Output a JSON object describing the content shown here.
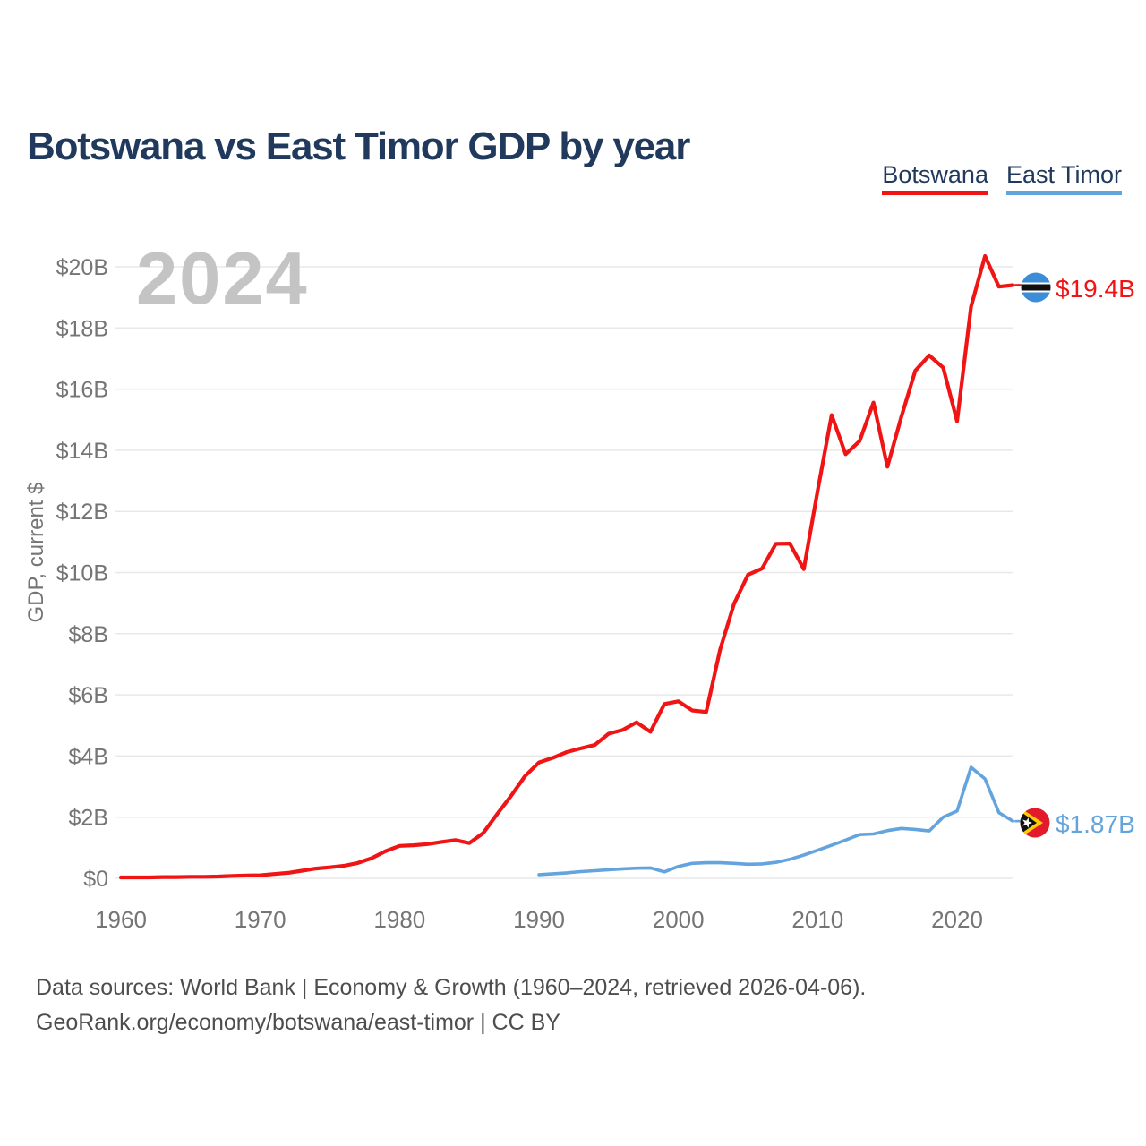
{
  "title": "Botswana vs East Timor GDP by year",
  "watermark": "2024",
  "colors": {
    "heading": "#20395c",
    "axis_text": "#757575",
    "grid": "#e8e8e8",
    "watermark": "#c4c4c4",
    "footer_text": "#4d4d4d",
    "botswana_red": "#f01414",
    "east_timor_blue": "#64a4de"
  },
  "legend": {
    "items": [
      {
        "label": "Botswana",
        "color": "#f01414"
      },
      {
        "label": "East Timor",
        "color": "#64a4de"
      }
    ]
  },
  "end_labels": [
    {
      "series": "Botswana",
      "value": "$19.4B",
      "icon": "botswana-flag-icon"
    },
    {
      "series": "East Timor",
      "value": "$1.87B",
      "icon": "east-timor-flag-icon"
    }
  ],
  "footer": {
    "line1": "Data sources: World Bank | Economy & Growth (1960–2024, retrieved 2026-04-06).",
    "line2": "GeoRank.org/economy/botswana/east-timor | CC BY"
  },
  "chart_data": {
    "type": "line",
    "title": "Botswana vs East Timor GDP by year",
    "xlabel": "",
    "ylabel": "GDP, current $",
    "y_unit": "USD billions",
    "xlim": [
      1960,
      2024
    ],
    "ylim": [
      0,
      20
    ],
    "grid": "horizontal",
    "legend_position": "top-right",
    "x_ticks": [
      {
        "v": 1960,
        "label": "1960"
      },
      {
        "v": 1970,
        "label": "1970"
      },
      {
        "v": 1980,
        "label": "1980"
      },
      {
        "v": 1990,
        "label": "1990"
      },
      {
        "v": 2000,
        "label": "2000"
      },
      {
        "v": 2010,
        "label": "2010"
      },
      {
        "v": 2020,
        "label": "2020"
      }
    ],
    "y_ticks": [
      {
        "v": 0,
        "label": "$0"
      },
      {
        "v": 2,
        "label": "$2B"
      },
      {
        "v": 4,
        "label": "$4B"
      },
      {
        "v": 6,
        "label": "$6B"
      },
      {
        "v": 8,
        "label": "$8B"
      },
      {
        "v": 10,
        "label": "$10B"
      },
      {
        "v": 12,
        "label": "$12B"
      },
      {
        "v": 14,
        "label": "$14B"
      },
      {
        "v": 16,
        "label": "$16B"
      },
      {
        "v": 18,
        "label": "$18B"
      },
      {
        "v": 20,
        "label": "$20B"
      }
    ],
    "series": [
      {
        "name": "Botswana",
        "color": "#f01414",
        "end_label": "$19.4B",
        "x": [
          1960,
          1961,
          1962,
          1963,
          1964,
          1965,
          1966,
          1967,
          1968,
          1969,
          1970,
          1971,
          1972,
          1973,
          1974,
          1975,
          1976,
          1977,
          1978,
          1979,
          1980,
          1981,
          1982,
          1983,
          1984,
          1985,
          1986,
          1987,
          1988,
          1989,
          1990,
          1991,
          1992,
          1993,
          1994,
          1995,
          1996,
          1997,
          1998,
          1999,
          2000,
          2001,
          2002,
          2003,
          2004,
          2005,
          2006,
          2007,
          2008,
          2009,
          2010,
          2011,
          2012,
          2013,
          2014,
          2015,
          2016,
          2017,
          2018,
          2019,
          2020,
          2021,
          2022,
          2023,
          2024
        ],
        "values": [
          0.03,
          0.03,
          0.03,
          0.04,
          0.04,
          0.05,
          0.05,
          0.06,
          0.08,
          0.09,
          0.1,
          0.14,
          0.18,
          0.25,
          0.32,
          0.36,
          0.41,
          0.5,
          0.66,
          0.89,
          1.06,
          1.08,
          1.12,
          1.19,
          1.25,
          1.15,
          1.48,
          2.1,
          2.7,
          3.34,
          3.79,
          3.94,
          4.13,
          4.25,
          4.36,
          4.73,
          4.85,
          5.1,
          4.79,
          5.7,
          5.79,
          5.49,
          5.44,
          7.49,
          8.98,
          9.93,
          10.13,
          10.94,
          10.95,
          10.11,
          12.7,
          15.15,
          13.87,
          14.3,
          15.56,
          13.46,
          15.1,
          16.6,
          17.1,
          16.7,
          14.95,
          18.7,
          20.35,
          19.35,
          19.4
        ]
      },
      {
        "name": "East Timor",
        "color": "#64a4de",
        "end_label": "$1.87B",
        "x": [
          1990,
          1991,
          1992,
          1993,
          1994,
          1995,
          1996,
          1997,
          1998,
          1999,
          2000,
          2001,
          2002,
          2003,
          2004,
          2005,
          2006,
          2007,
          2008,
          2009,
          2010,
          2011,
          2012,
          2013,
          2014,
          2015,
          2016,
          2017,
          2018,
          2019,
          2020,
          2021,
          2022,
          2023,
          2024
        ],
        "values": [
          0.12,
          0.15,
          0.18,
          0.22,
          0.25,
          0.28,
          0.31,
          0.33,
          0.34,
          0.21,
          0.39,
          0.49,
          0.51,
          0.51,
          0.49,
          0.46,
          0.47,
          0.52,
          0.62,
          0.76,
          0.92,
          1.08,
          1.25,
          1.43,
          1.45,
          1.56,
          1.63,
          1.6,
          1.55,
          2.0,
          2.2,
          3.63,
          3.25,
          2.15,
          1.87
        ]
      }
    ]
  }
}
